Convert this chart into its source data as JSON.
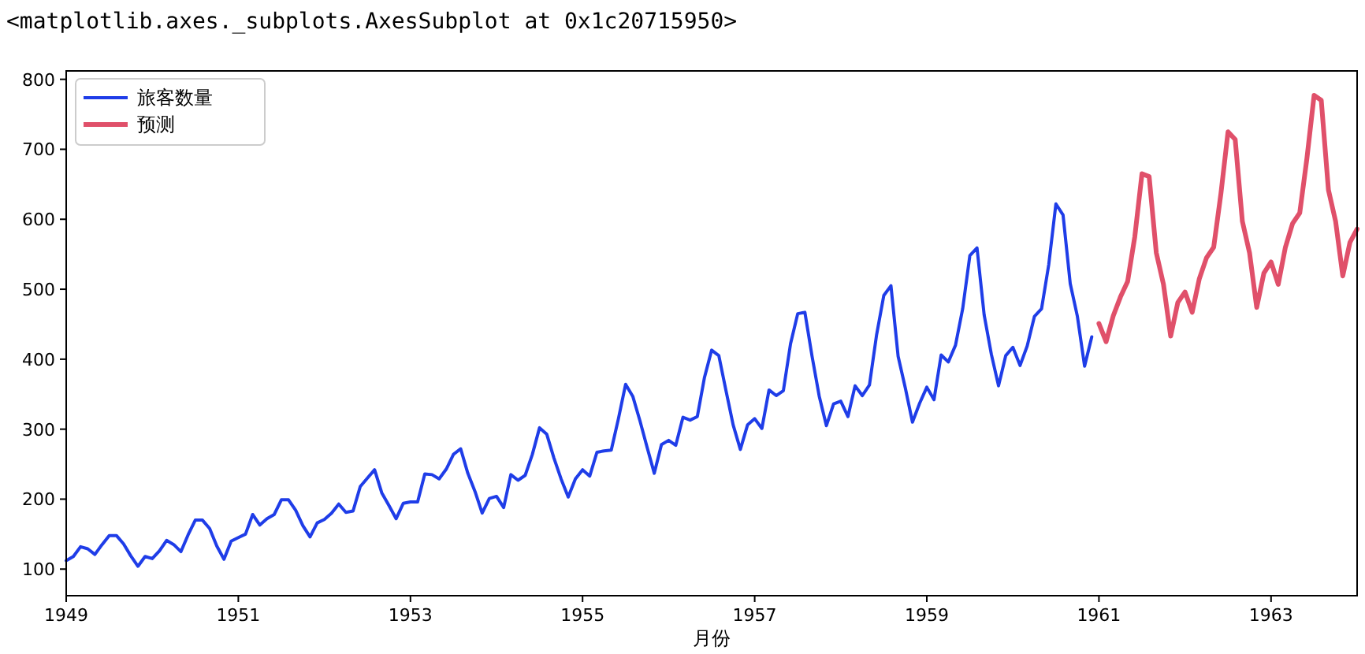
{
  "chart_data": {
    "type": "line",
    "annotations": [
      "<matplotlib.axes._subplots.AxesSubplot at 0x1c20715950>"
    ],
    "xlabel": "月份",
    "legend": "top left",
    "grid": false,
    "xlim": [
      "1949-01",
      "1964-01"
    ],
    "xticks": [
      {
        "value": "1949-01",
        "label": "1949"
      },
      {
        "value": "1951-01",
        "label": "1951"
      },
      {
        "value": "1953-01",
        "label": "1953"
      },
      {
        "value": "1955-01",
        "label": "1955"
      },
      {
        "value": "1957-01",
        "label": "1957"
      },
      {
        "value": "1959-01",
        "label": "1959"
      },
      {
        "value": "1961-01",
        "label": "1961"
      },
      {
        "value": "1963-01",
        "label": "1963"
      }
    ],
    "ylim": [
      62,
      812
    ],
    "yticks": [
      100,
      200,
      300,
      400,
      500,
      600,
      700,
      800
    ],
    "series": [
      {
        "name": "旅客数量",
        "color": "#1f3de8",
        "x": [
          "1949-01",
          "1949-02",
          "1949-03",
          "1949-04",
          "1949-05",
          "1949-06",
          "1949-07",
          "1949-08",
          "1949-09",
          "1949-10",
          "1949-11",
          "1949-12",
          "1950-01",
          "1950-02",
          "1950-03",
          "1950-04",
          "1950-05",
          "1950-06",
          "1950-07",
          "1950-08",
          "1950-09",
          "1950-10",
          "1950-11",
          "1950-12",
          "1951-01",
          "1951-02",
          "1951-03",
          "1951-04",
          "1951-05",
          "1951-06",
          "1951-07",
          "1951-08",
          "1951-09",
          "1951-10",
          "1951-11",
          "1951-12",
          "1952-01",
          "1952-02",
          "1952-03",
          "1952-04",
          "1952-05",
          "1952-06",
          "1952-07",
          "1952-08",
          "1952-09",
          "1952-10",
          "1952-11",
          "1952-12",
          "1953-01",
          "1953-02",
          "1953-03",
          "1953-04",
          "1953-05",
          "1953-06",
          "1953-07",
          "1953-08",
          "1953-09",
          "1953-10",
          "1953-11",
          "1953-12",
          "1954-01",
          "1954-02",
          "1954-03",
          "1954-04",
          "1954-05",
          "1954-06",
          "1954-07",
          "1954-08",
          "1954-09",
          "1954-10",
          "1954-11",
          "1954-12",
          "1955-01",
          "1955-02",
          "1955-03",
          "1955-04",
          "1955-05",
          "1955-06",
          "1955-07",
          "1955-08",
          "1955-09",
          "1955-10",
          "1955-11",
          "1955-12",
          "1956-01",
          "1956-02",
          "1956-03",
          "1956-04",
          "1956-05",
          "1956-06",
          "1956-07",
          "1956-08",
          "1956-09",
          "1956-10",
          "1956-11",
          "1956-12",
          "1957-01",
          "1957-02",
          "1957-03",
          "1957-04",
          "1957-05",
          "1957-06",
          "1957-07",
          "1957-08",
          "1957-09",
          "1957-10",
          "1957-11",
          "1957-12",
          "1958-01",
          "1958-02",
          "1958-03",
          "1958-04",
          "1958-05",
          "1958-06",
          "1958-07",
          "1958-08",
          "1958-09",
          "1958-10",
          "1958-11",
          "1958-12",
          "1959-01",
          "1959-02",
          "1959-03",
          "1959-04",
          "1959-05",
          "1959-06",
          "1959-07",
          "1959-08",
          "1959-09",
          "1959-10",
          "1959-11",
          "1959-12",
          "1960-01",
          "1960-02",
          "1960-03",
          "1960-04",
          "1960-05",
          "1960-06",
          "1960-07",
          "1960-08",
          "1960-09",
          "1960-10",
          "1960-11",
          "1960-12"
        ],
        "values": [
          112,
          118,
          132,
          129,
          121,
          135,
          148,
          148,
          136,
          119,
          104,
          118,
          115,
          126,
          141,
          135,
          125,
          149,
          170,
          170,
          158,
          133,
          114,
          140,
          145,
          150,
          178,
          163,
          172,
          178,
          199,
          199,
          184,
          162,
          146,
          166,
          171,
          180,
          193,
          181,
          183,
          218,
          230,
          242,
          209,
          191,
          172,
          194,
          196,
          196,
          236,
          235,
          229,
          243,
          264,
          272,
          237,
          211,
          180,
          201,
          204,
          188,
          235,
          227,
          234,
          264,
          302,
          293,
          259,
          229,
          203,
          229,
          242,
          233,
          267,
          269,
          270,
          315,
          364,
          347,
          312,
          274,
          237,
          278,
          284,
          277,
          317,
          313,
          318,
          374,
          413,
          405,
          355,
          306,
          271,
          306,
          315,
          301,
          356,
          348,
          355,
          422,
          465,
          467,
          404,
          347,
          305,
          336,
          340,
          318,
          362,
          348,
          363,
          435,
          491,
          505,
          404,
          359,
          310,
          337,
          360,
          342,
          406,
          396,
          420,
          472,
          548,
          559,
          463,
          407,
          362,
          405,
          417,
          391,
          419,
          461,
          472,
          535,
          622,
          606,
          508,
          461,
          390,
          432
        ]
      },
      {
        "name": "预测",
        "color": "#e0506a",
        "x": [
          "1961-01",
          "1961-02",
          "1961-03",
          "1961-04",
          "1961-05",
          "1961-06",
          "1961-07",
          "1961-08",
          "1961-09",
          "1961-10",
          "1961-11",
          "1961-12",
          "1962-01",
          "1962-02",
          "1962-03",
          "1962-04",
          "1962-05",
          "1962-06",
          "1962-07",
          "1962-08",
          "1962-09",
          "1962-10",
          "1962-11",
          "1962-12",
          "1963-01",
          "1963-02",
          "1963-03",
          "1963-04",
          "1963-05",
          "1963-06",
          "1963-07",
          "1963-08",
          "1963-09",
          "1963-10",
          "1963-11",
          "1963-12",
          "1964-01"
        ],
        "values": [
          451,
          425,
          462,
          489,
          511,
          575,
          665,
          661,
          552,
          507,
          433,
          481,
          496,
          467,
          515,
          545,
          560,
          636,
          725,
          714,
          597,
          552,
          474,
          523,
          539,
          507,
          560,
          594,
          609,
          687,
          777,
          770,
          642,
          597,
          519,
          567,
          586
        ]
      }
    ]
  }
}
